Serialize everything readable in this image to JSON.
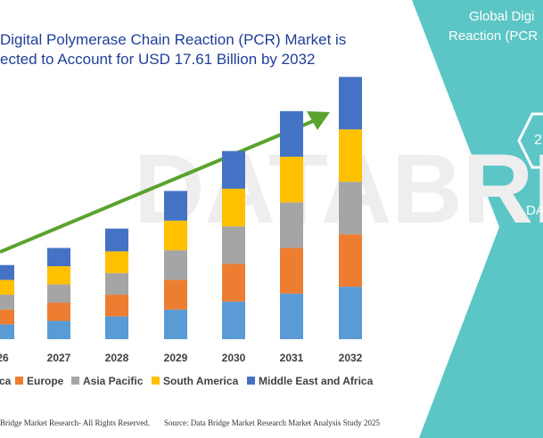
{
  "title_lines": [
    "Digital Polymerase Chain Reaction (PCR) Market is",
    "ected to Account for USD 17.61 Billion by 2032"
  ],
  "side_panel": {
    "heading_lines": [
      "Global Digi",
      "Reaction (PCR"
    ],
    "badge_text": "2",
    "label_text": "DA"
  },
  "footer": {
    "left": "Bridge Market Research- All Rights Reserved.",
    "right": "Source: Data Bridge Market Research Market Analysis Study 2025"
  },
  "colors": {
    "north_america": "#5b9bd5",
    "europe": "#ed7d31",
    "asia_pacific": "#a5a5a5",
    "south_america": "#ffc000",
    "middle_east_africa": "#4472c4",
    "arrow": "#5aa32f",
    "panel": "#5cc5c5",
    "title": "#1f3f99"
  },
  "chart_data": {
    "type": "bar",
    "stacked": true,
    "categories": [
      "26",
      "2027",
      "2028",
      "2029",
      "2030",
      "2031",
      "2032"
    ],
    "series": [
      {
        "name": "ca",
        "values": [
          1.3,
          1.6,
          2.0,
          2.6,
          3.3,
          4.0,
          4.6
        ]
      },
      {
        "name": "Europe",
        "values": [
          1.3,
          1.6,
          1.9,
          2.6,
          3.3,
          4.0,
          4.6
        ]
      },
      {
        "name": "Asia Pacific",
        "values": [
          1.3,
          1.6,
          1.9,
          2.6,
          3.3,
          4.0,
          4.6
        ]
      },
      {
        "name": "South America",
        "values": [
          1.3,
          1.6,
          1.9,
          2.6,
          3.3,
          4.0,
          4.6
        ]
      },
      {
        "name": "Middle East and Africa",
        "values": [
          1.3,
          1.6,
          2.0,
          2.6,
          3.3,
          4.0,
          4.6
        ]
      }
    ],
    "ylim": [
      0,
      23.5
    ],
    "legend_position": "bottom",
    "grid": false,
    "trend_arrow": true
  }
}
